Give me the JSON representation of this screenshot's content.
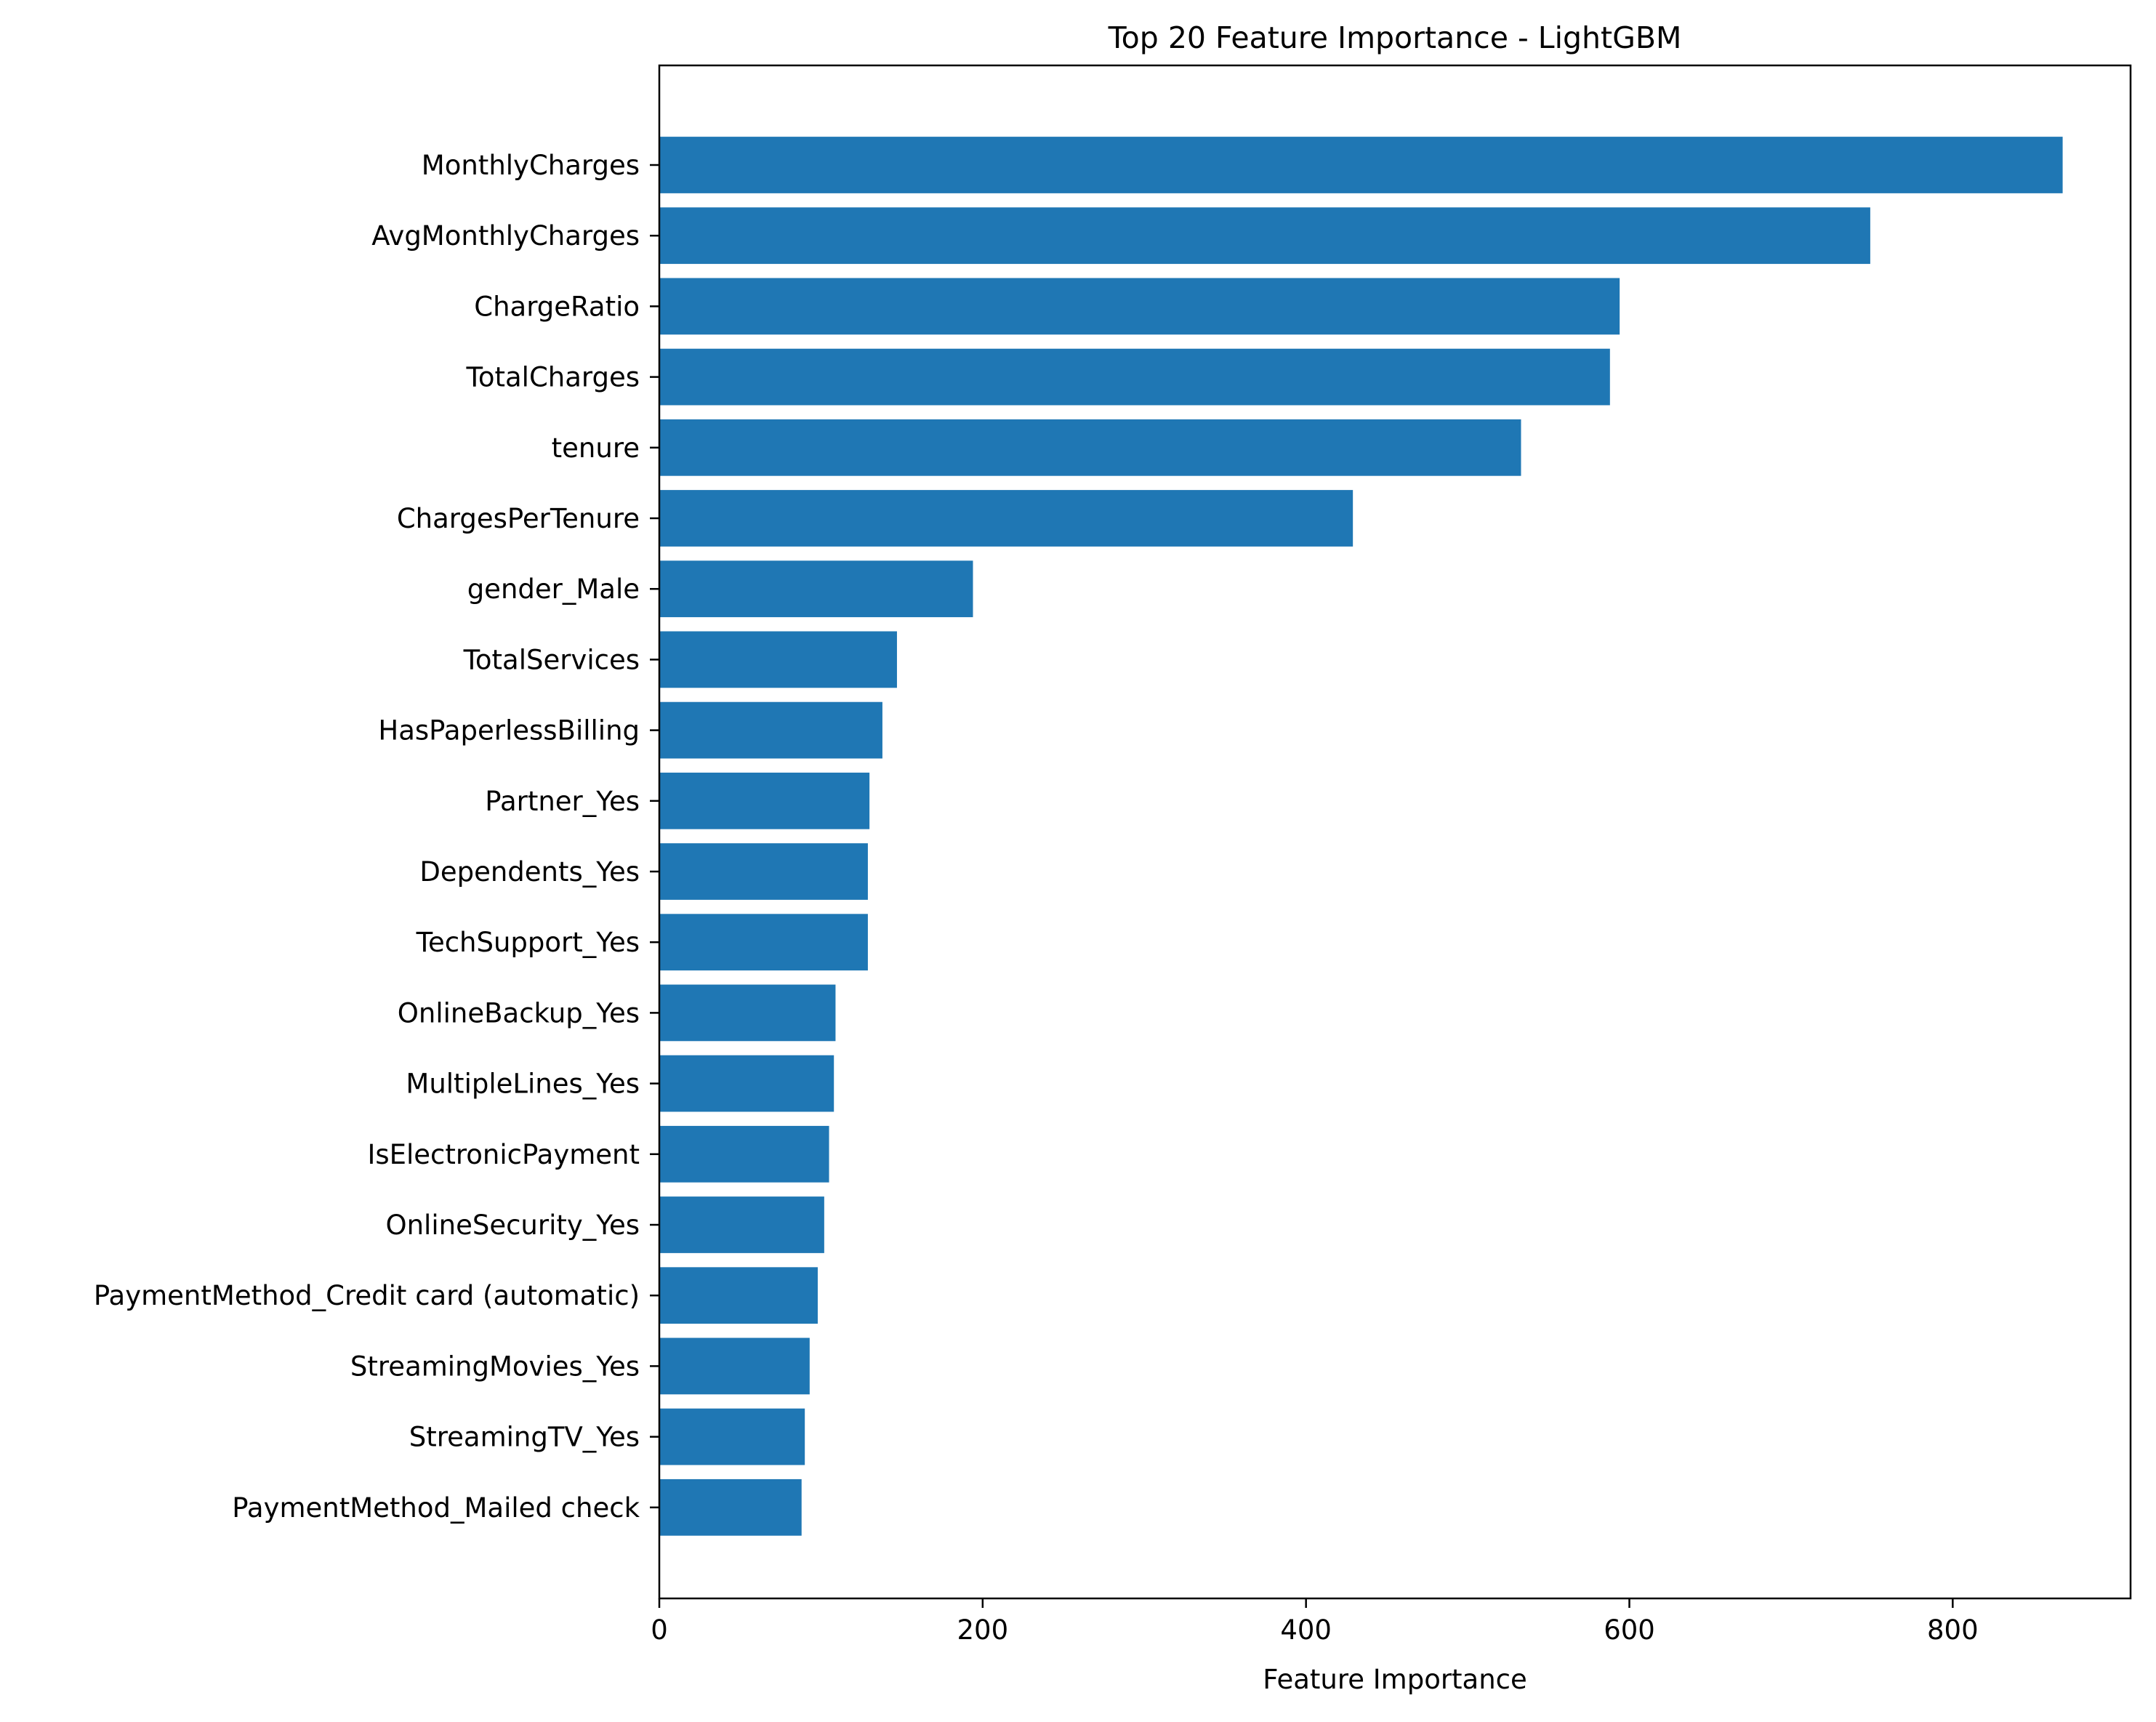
{
  "chart_data": {
    "type": "bar",
    "orientation": "horizontal",
    "title": "Top 20 Feature Importance - LightGBM",
    "xlabel": "Feature Importance",
    "ylabel": "",
    "xlim": [
      0,
      910
    ],
    "xticks": [
      0,
      200,
      400,
      600,
      800
    ],
    "grid": false,
    "legend": "none",
    "bar_color": "#1f77b4",
    "categories": [
      "MonthlyCharges",
      "AvgMonthlyCharges",
      "ChargeRatio",
      "TotalCharges",
      "tenure",
      "ChargesPerTenure",
      "gender_Male",
      "TotalServices",
      "HasPaperlessBilling",
      "Partner_Yes",
      "Dependents_Yes",
      "TechSupport_Yes",
      "OnlineBackup_Yes",
      "MultipleLines_Yes",
      "IsElectronicPayment",
      "OnlineSecurity_Yes",
      "PaymentMethod_Credit card (automatic)",
      "StreamingMovies_Yes",
      "StreamingTV_Yes",
      "PaymentMethod_Mailed check"
    ],
    "values": [
      868,
      749,
      594,
      588,
      533,
      429,
      194,
      147,
      138,
      130,
      129,
      129,
      109,
      108,
      105,
      102,
      98,
      93,
      90,
      88
    ]
  }
}
